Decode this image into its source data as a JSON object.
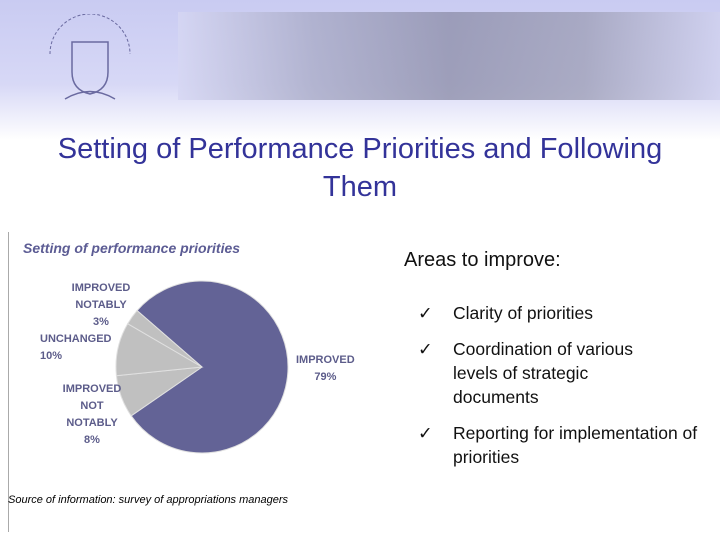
{
  "slide": {
    "title": "Setting of Performance Priorities and Following Them",
    "logo_text": "VALSTYBĖS KONTROLĖ",
    "source": "Source of information: survey of appropriations managers",
    "areas_heading": "Areas to improve:",
    "check_icon": "checkmark-icon",
    "areas": [
      "Clarity of priorities",
      "Coordination of various levels of strategic documents",
      "Reporting for implementation of priorities"
    ]
  },
  "chart_data": {
    "type": "pie",
    "title": "Setting of performance priorities",
    "slices": [
      {
        "label": "IMPROVED",
        "value": 79,
        "value_label": "79%",
        "color": "#636396"
      },
      {
        "label": "IMPROVED NOT NOTABLY",
        "value": 8,
        "value_label": "8%",
        "color": "#c0c0c0"
      },
      {
        "label": "UNCHANGED",
        "value": 10,
        "value_label": "10%",
        "color": "#c0c0c0"
      },
      {
        "label": "IMPROVED NOTABLY",
        "value": 3,
        "value_label": "3%",
        "color": "#c0c0c0"
      }
    ]
  }
}
